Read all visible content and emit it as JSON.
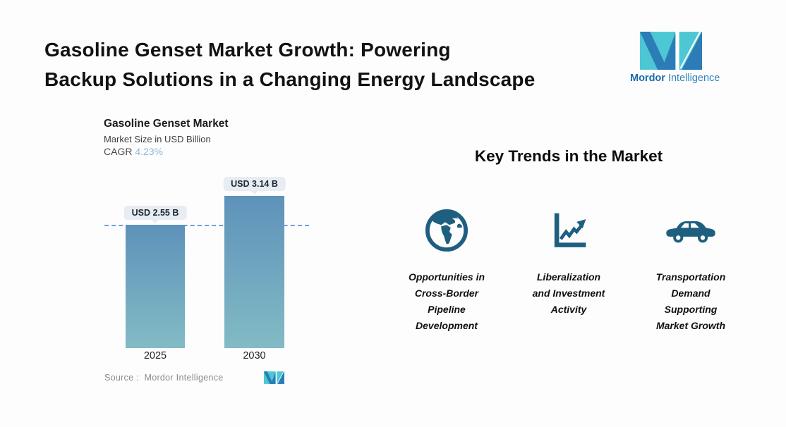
{
  "page": {
    "title": "Gasoline Genset Market Growth: Powering\nBackup Solutions in a Changing Energy Landscape"
  },
  "brand": {
    "name_bold": "Mordor",
    "name_light": "Intelligence"
  },
  "chart": {
    "title": "Gasoline Genset Market",
    "subtitle": "Market Size in USD Billion",
    "cagr_label": "CAGR ",
    "cagr_value": "4.23%",
    "source_label": "Source :",
    "source_value": "Mordor Intelligence"
  },
  "chart_data": {
    "type": "bar",
    "title": "Gasoline Genset Market",
    "subtitle": "Market Size in USD Billion",
    "unit": "USD Billion",
    "categories": [
      "2025",
      "2030"
    ],
    "values": [
      2.55,
      3.14
    ],
    "bar_labels": [
      "USD 2.55 B",
      "USD 3.14 B"
    ],
    "cagr": "4.23%",
    "ylim": [
      0,
      3.6
    ],
    "grid": false,
    "legend": "none",
    "reference_line": {
      "at_value": 2.55,
      "style": "dashed"
    },
    "colors": {
      "bar_top": "#5e92ba",
      "bar_bottom": "#82bbc5",
      "dashed_line": "#6d9fd8",
      "pill_bg": "#e7edf2"
    }
  },
  "trends": {
    "heading": "Key Trends in the Market",
    "items": [
      {
        "icon": "globe-icon",
        "label": "Opportunities in\nCross-Border\nPipeline\nDevelopment"
      },
      {
        "icon": "trend-chart-icon",
        "label": "Liberalization\nand Investment\nActivity"
      },
      {
        "icon": "car-icon",
        "label": "Transportation\nDemand\nSupporting\nMarket Growth"
      }
    ]
  },
  "colors": {
    "accent_teal": "#4cc7d3",
    "accent_blue": "#2b7cb7",
    "icon_color": "#1e5f80",
    "cagr_value_color": "#8fb9dd",
    "source_text": "#8b8b8b",
    "title_text": "#121212"
  }
}
